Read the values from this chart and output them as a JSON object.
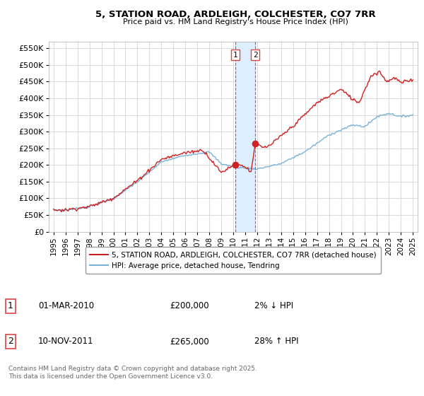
{
  "title_line1": "5, STATION ROAD, ARDLEIGH, COLCHESTER, CO7 7RR",
  "title_line2": "Price paid vs. HM Land Registry's House Price Index (HPI)",
  "ylim": [
    0,
    570000
  ],
  "yticks": [
    0,
    50000,
    100000,
    150000,
    200000,
    250000,
    300000,
    350000,
    400000,
    450000,
    500000,
    550000
  ],
  "ytick_labels": [
    "£0",
    "£50K",
    "£100K",
    "£150K",
    "£200K",
    "£250K",
    "£300K",
    "£350K",
    "£400K",
    "£450K",
    "£500K",
    "£550K"
  ],
  "hpi_color": "#7ab4d8",
  "price_color": "#cc2222",
  "vline_color": "#dd4444",
  "shade_color": "#ddeeff",
  "marker_dot_color": "#cc2222",
  "transaction1": {
    "label": "1",
    "date": "01-MAR-2010",
    "price": 200000,
    "pct": "2%",
    "dir": "↓"
  },
  "transaction2": {
    "label": "2",
    "date": "10-NOV-2011",
    "price": 265000,
    "pct": "28%",
    "dir": "↑"
  },
  "legend_property": "5, STATION ROAD, ARDLEIGH, COLCHESTER, CO7 7RR (detached house)",
  "legend_hpi": "HPI: Average price, detached house, Tendring",
  "footnote": "Contains HM Land Registry data © Crown copyright and database right 2025.\nThis data is licensed under the Open Government Licence v3.0.",
  "background_color": "#ffffff",
  "grid_color": "#cccccc",
  "xtick_years": [
    "1995",
    "1996",
    "1997",
    "1998",
    "1999",
    "2000",
    "2001",
    "2002",
    "2003",
    "2004",
    "2005",
    "2006",
    "2007",
    "2008",
    "2009",
    "2010",
    "2011",
    "2012",
    "2013",
    "2014",
    "2015",
    "2016",
    "2017",
    "2018",
    "2019",
    "2020",
    "2021",
    "2022",
    "2023",
    "2024",
    "2025"
  ],
  "t1_year": 2010.167,
  "t2_year": 2011.833,
  "t1_price": 200000,
  "t2_price": 265000
}
